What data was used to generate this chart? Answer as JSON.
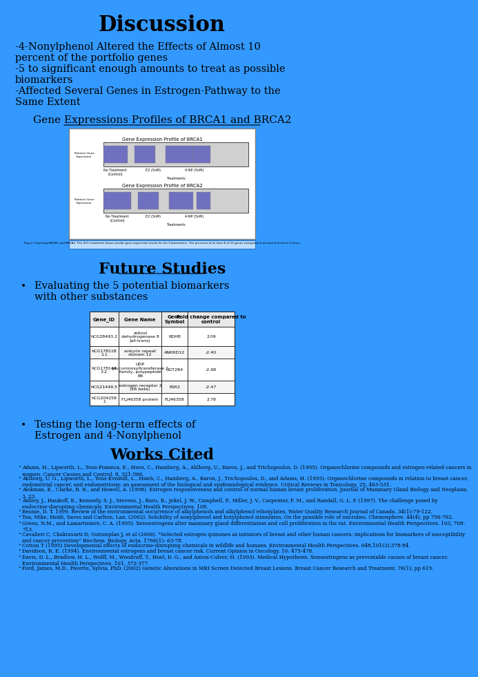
{
  "bg_color": "#3399FF",
  "title": "Discussion",
  "title_fontsize": 22,
  "title_bold": true,
  "bullet_points": [
    "-4-Nonylphenol Altered the Effects of Almost 10\npercent of the portfolio genes",
    "-5 to significant enough amounts to treat as possible\nbiomarkers",
    "-Affected Several Genes in Estrogen-Pathway to the\nSame Extent"
  ],
  "bullet_fontsize": 10.5,
  "gene_profile_title": "Gene Expressions Profiles of BRCA1 and BRCA2",
  "gene_profile_fontsize": 11,
  "future_studies_title": "Future Studies",
  "future_studies_fontsize": 16,
  "future_bullets": [
    "Evaluating the 5 potential biomarkers\nwith other substances",
    "Testing the long-term effects of\nEstrogen and 4-Nonylphenol"
  ],
  "future_bullet_fontsize": 10.5,
  "works_cited_title": "Works Cited",
  "works_cited_fontsize": 16,
  "table_headers": [
    "Gene_ID",
    "Gene Name",
    "Gene\nSymbol",
    "Fold change compared to\ncontrol"
  ],
  "table_rows": [
    [
      "hCG28493.2",
      "retinol\ndehydrogenase 8\n(all-trans)",
      "RDH8",
      "2.09"
    ],
    [
      "hCG178118\n1.1",
      "ankyrin repeat\ndomain 12",
      "ANKRD12",
      "-2.40"
    ],
    [
      "hCG178144\n3.2",
      "UDP\nglucuronosyltransferase 2\nfamily, polypeptide\nB4",
      "UGT2B4",
      "-2.98"
    ],
    [
      "hCG21449.5",
      "estrogen receptor 2\n(ER beta)",
      "ESR2",
      "-2.47"
    ],
    [
      "hCG204258\n.1",
      "FLJ46358 protein",
      "FLJ46358",
      "2.78"
    ]
  ],
  "references": [
    "Adams, H., Lipworth, L., Tous-Fonseca, E., Hsen, C., Hamberg, A., Ahlborg, U., Baren, J., and Trichopoulos, D. (1995). Organochlorine compounds and estrogen-related cancers in\nwomen. Cancer Causes and Control. 8, 321-566.",
    "Ahlborg, U. G., Lipworth, L., Tous-Evnstdt, L., Hsieh, C., Hamberg, A., Baron, J., Trichopoulos, D., and Adams, H. (1995). Organochlorine compounds in relation to breast cancer,\nendometrial cancer, and endometriosis: an assessment of the biological and epidemiological evidence. Critical Reviews in Toxicology. 25, 463-531.",
    "Alokman, E., Clarke, R. B., and Howell, A. (1998). Estrogen responsiveness and control of normal human breast proliferation. Journal of Mammary Gland Biology and Neoplasia.\n3, 23.",
    "Ashley, J., Haukoff, E., Kennedy, S. J., Stevens, J., Baru, B., Jekel, J. W., Campbell, P., Miller, J. V., Carpenter, F. M., and Randall, G. L. P. (1997). The challenge posed by\nendocrine-disrupting chemicals. Environmental Health Perspectives. 108.",
    "Bennie, D. T. 1999. Review of the environmental occurrence of alkylphenols and alkylphenol ethoxylates. Water Quality Research Journal of Canada. 34(1):79-122.",
    "Tea, Mike, Heidi, Saves and Carlton, Lan. (2002). Solubility of nonylphenol and butylphenol stimulates. On the possible role of microbes. Chemosphere. 44(4), pp 756-762.",
    "Green, N.M., and Lamartiniere, C. A. (1995). Xenoestrogens alter mammary gland differentiation and cell proliferation in the rat. Environmental Health Perspectives. 103, 708-\n713.",
    "Cavalieri C, Chakravarti D, Guttenplan J, et al (2006). \"Selected estrogen quinones as initiators of breast and other human cancers: implications for biomarkers of susceptibility\nand cancer prevention\" Biochem. Biology. Acta. 1766(1): 63-78.",
    "Cotton T (1995) Developmental effects of endocrine-disrupting chemicals in wildlife and humans. Environmental Health Perspectives. 048,101(3):378-84.",
    "Davidson, R. E. (1994). Environmental estrogens and breast cancer risk. Current Opinion in Oncology. 10: 475-478.",
    "Davis, D. L., Bradlow, H. L., Wolff, M., Woodruff, T., Hoel, D. G., and Anton-Culver, H. (1993). Medical Hypothesis. Xenoestrogens as preventable causes of breast cancer.\nEnvironmental Health Perspectives. 101, 372-377.",
    "Ford, James, M.D., Pavette, Sylvia, PhD. (2002) Genetic Alterations in MRI Screen Detected Breast Lesions. Breast Cancer Research and Treatment. 76(1), pp 619."
  ],
  "ref_fontsize": 5.2
}
